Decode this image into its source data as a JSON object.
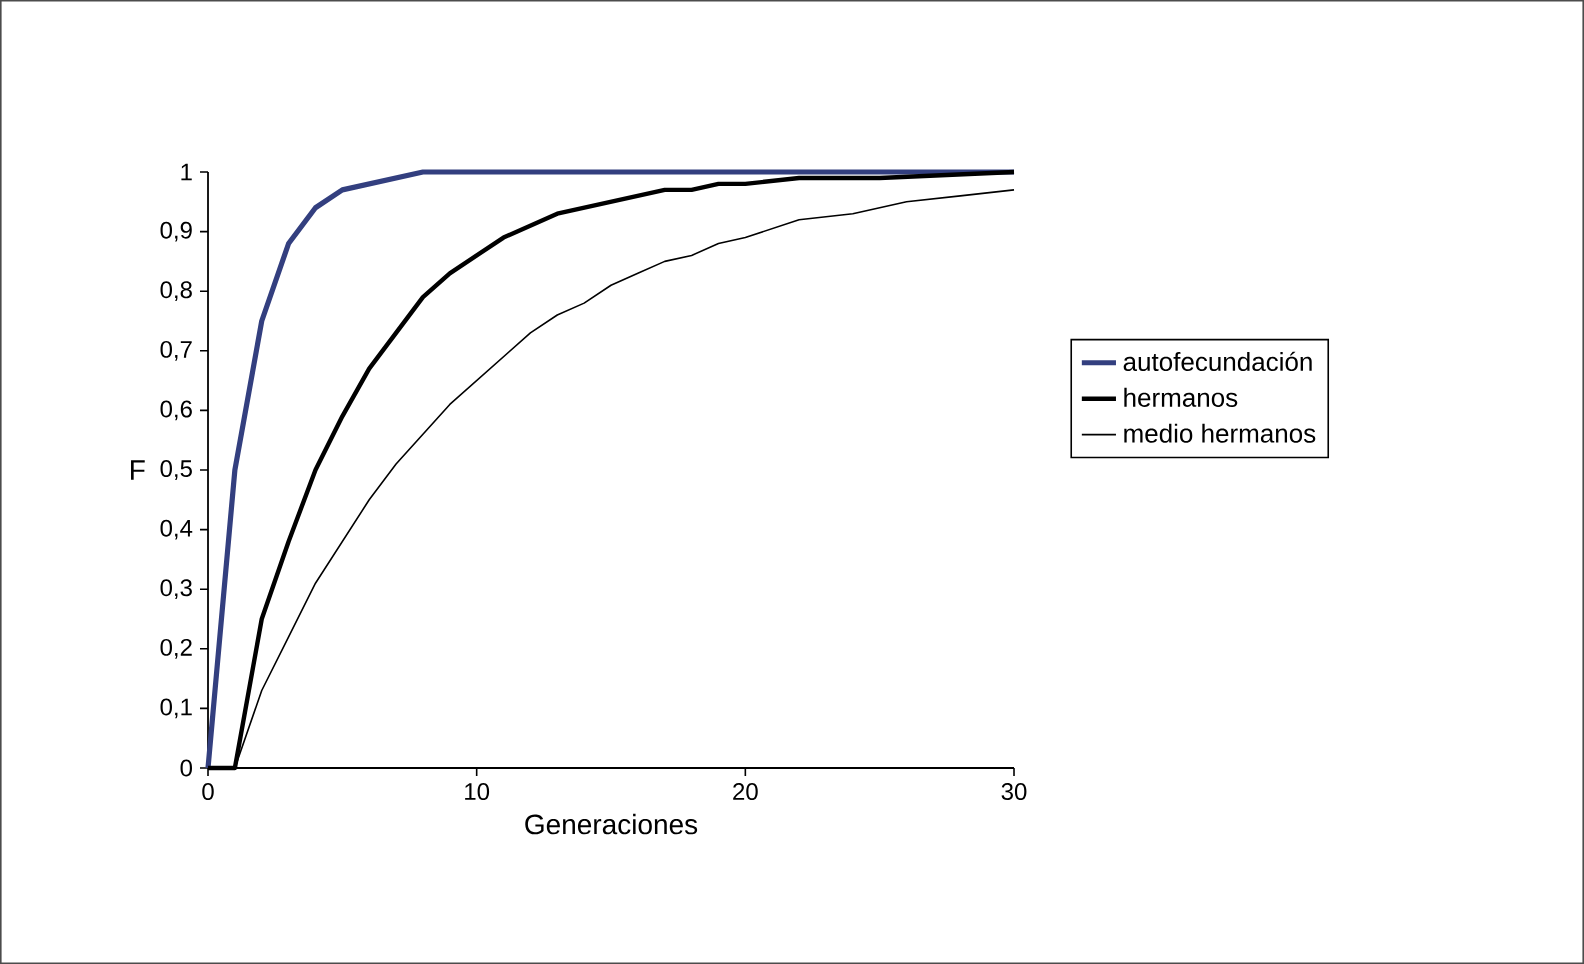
{
  "chart_data": {
    "type": "line",
    "xlabel": "Generaciones",
    "ylabel": "F",
    "xlim": [
      0,
      30
    ],
    "ylim": [
      0,
      1
    ],
    "xticks": [
      0,
      10,
      20,
      30
    ],
    "yticks": [
      0,
      {
        "value": 0.1,
        "label": "0,1"
      },
      {
        "value": 0.2,
        "label": "0,2"
      },
      {
        "value": 0.3,
        "label": "0,3"
      },
      {
        "value": 0.4,
        "label": "0,4"
      },
      {
        "value": 0.5,
        "label": "0,5"
      },
      {
        "value": 0.6,
        "label": "0,6"
      },
      {
        "value": 0.7,
        "label": "0,7"
      },
      {
        "value": 0.8,
        "label": "0,8"
      },
      {
        "value": 0.9,
        "label": "0,9"
      },
      1
    ],
    "legend": "right",
    "grid": false,
    "marker": "none",
    "line_style": "solid",
    "series": [
      {
        "name": "autofecundación",
        "color": "#333f7f",
        "x": [
          0,
          1,
          2,
          3,
          4,
          5,
          6,
          7,
          8,
          10,
          15,
          20,
          25,
          30
        ],
        "values": [
          0,
          0.5,
          0.75,
          0.88,
          0.94,
          0.97,
          0.98,
          0.99,
          1,
          1,
          1,
          1,
          1,
          1
        ]
      },
      {
        "name": "hermanos",
        "color": "#000000",
        "x": [
          0,
          1,
          2,
          3,
          4,
          5,
          6,
          7,
          8,
          9,
          10,
          11,
          12,
          13,
          14,
          15,
          16,
          17,
          18,
          19,
          20,
          22,
          25,
          30
        ],
        "values": [
          0,
          0,
          0.25,
          0.38,
          0.5,
          0.59,
          0.67,
          0.73,
          0.79,
          0.83,
          0.86,
          0.89,
          0.91,
          0.93,
          0.94,
          0.95,
          0.96,
          0.97,
          0.97,
          0.98,
          0.98,
          0.99,
          0.99,
          1
        ]
      },
      {
        "name": "medio hermanos",
        "color": "#000000",
        "x": [
          0,
          1,
          2,
          3,
          4,
          5,
          6,
          7,
          8,
          9,
          10,
          11,
          12,
          13,
          14,
          15,
          16,
          17,
          18,
          19,
          20,
          22,
          24,
          26,
          28,
          30
        ],
        "values": [
          0,
          0,
          0.13,
          0.22,
          0.31,
          0.38,
          0.45,
          0.51,
          0.56,
          0.61,
          0.65,
          0.69,
          0.73,
          0.76,
          0.78,
          0.81,
          0.83,
          0.85,
          0.86,
          0.88,
          0.89,
          0.92,
          0.93,
          0.95,
          0.96,
          0.97
        ]
      }
    ]
  }
}
